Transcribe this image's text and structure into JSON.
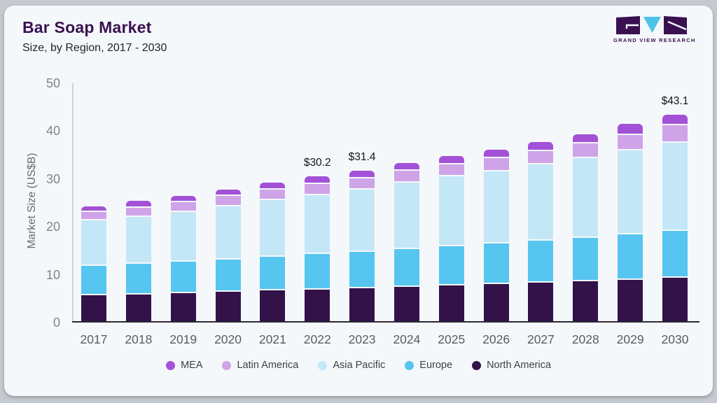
{
  "header": {
    "title": "Bar Soap Market",
    "subtitle": "Size, by Region, 2017 - 2030"
  },
  "logo": {
    "name": "GRAND VIEW RESEARCH",
    "brand_dark": "#3a1150",
    "brand_blue": "#4fc2ea"
  },
  "chart_data": {
    "type": "bar",
    "stacked": true,
    "title": "Bar Soap Market Size, by Region, 2017 - 2030",
    "xlabel": "",
    "ylabel": "Market Size (US$B)",
    "ylim": [
      0,
      50
    ],
    "yticks": [
      0,
      10,
      20,
      30,
      40,
      50
    ],
    "grid": false,
    "legend_position": "bottom",
    "categories": [
      "2017",
      "2018",
      "2019",
      "2020",
      "2021",
      "2022",
      "2023",
      "2024",
      "2025",
      "2026",
      "2027",
      "2028",
      "2029",
      "2030"
    ],
    "series": [
      {
        "name": "North America",
        "color": "#33124a",
        "values": [
          5.4,
          5.6,
          5.9,
          6.1,
          6.4,
          6.6,
          6.9,
          7.1,
          7.4,
          7.7,
          8.0,
          8.3,
          8.6,
          9.0
        ]
      },
      {
        "name": "Europe",
        "color": "#56c5f0",
        "values": [
          6.2,
          6.4,
          6.5,
          6.8,
          7.0,
          7.4,
          7.6,
          7.9,
          8.2,
          8.5,
          8.8,
          9.1,
          9.5,
          9.9
        ]
      },
      {
        "name": "Asia Pacific",
        "color": "#c4e7f7",
        "values": [
          9.4,
          9.8,
          10.4,
          11.1,
          11.9,
          12.3,
          13.0,
          13.9,
          14.6,
          15.1,
          15.9,
          16.7,
          17.6,
          18.4
        ]
      },
      {
        "name": "Latin America",
        "color": "#cfa3e8",
        "values": [
          1.8,
          1.9,
          2.0,
          2.2,
          2.2,
          2.3,
          2.4,
          2.5,
          2.6,
          2.7,
          2.8,
          3.0,
          3.2,
          3.7
        ]
      },
      {
        "name": "MEA",
        "color": "#a351d6",
        "values": [
          1.2,
          1.4,
          1.4,
          1.3,
          1.4,
          1.6,
          1.5,
          1.6,
          1.7,
          1.9,
          1.9,
          2.0,
          2.3,
          2.1
        ]
      }
    ],
    "totals": [
      24.0,
      25.1,
      26.2,
      27.5,
      28.9,
      30.2,
      31.4,
      33.0,
      34.5,
      35.9,
      37.4,
      39.1,
      41.2,
      43.1
    ],
    "annotations": [
      "",
      "",
      "",
      "",
      "",
      "$30.2",
      "$31.4",
      "",
      "",
      "",
      "",
      "",
      "",
      "$43.1"
    ],
    "legend": [
      {
        "label": "MEA",
        "color": "#a351d6"
      },
      {
        "label": "Latin America",
        "color": "#cfa3e8"
      },
      {
        "label": "Asia Pacific",
        "color": "#c4e7f7"
      },
      {
        "label": "Europe",
        "color": "#56c5f0"
      },
      {
        "label": "North America",
        "color": "#33124a"
      }
    ]
  }
}
